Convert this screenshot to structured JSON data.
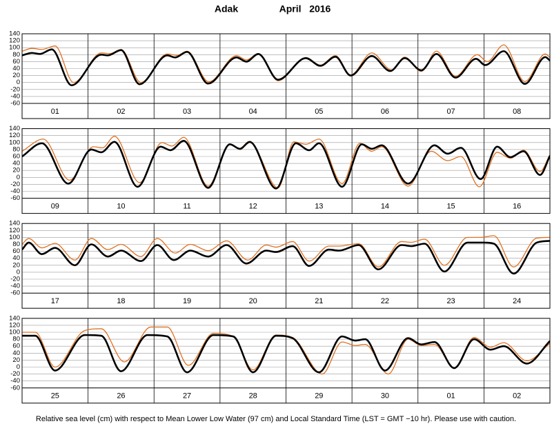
{
  "title": "Adak",
  "subtitle": "April   2016",
  "footnote": "Relative sea level (cm) with respect to Mean Lower Low Water (97 cm) and Local Standard Time (LST = GMT −10 hr). Please use with caution.",
  "chart_data": [
    {
      "type": "line",
      "categories": [
        "01",
        "02",
        "03",
        "04",
        "05",
        "06",
        "07",
        "08"
      ],
      "xlim": [
        0,
        8
      ],
      "xticks": [
        1,
        2,
        3,
        4,
        5,
        6,
        7
      ],
      "ylim": [
        -60,
        140
      ],
      "yticks": [
        -60,
        -40,
        -20,
        0,
        20,
        40,
        60,
        80,
        100,
        120,
        140
      ],
      "grid": true,
      "series": [
        {
          "color": "#e07020",
          "x": [
            0,
            0.15,
            0.3,
            0.5,
            0.78,
            1.2,
            1.33,
            1.5,
            1.8,
            2.2,
            2.35,
            2.5,
            2.83,
            3.25,
            3.4,
            3.58,
            3.88,
            4.3,
            4.52,
            4.75,
            4.98,
            5.3,
            5.6,
            5.8,
            6.05,
            6.28,
            6.57,
            6.9,
            7.05,
            7.3,
            7.62,
            7.93,
            8
          ],
          "values": [
            90,
            98,
            95,
            105,
            0,
            85,
            83,
            95,
            0,
            82,
            78,
            90,
            2,
            77,
            65,
            83,
            5,
            72,
            50,
            77,
            22,
            85,
            36,
            73,
            32,
            90,
            18,
            80,
            60,
            108,
            3,
            82,
            72
          ]
        },
        {
          "color": "#000000",
          "x": [
            0,
            0.15,
            0.27,
            0.45,
            0.75,
            1.2,
            1.3,
            1.5,
            1.78,
            2.2,
            2.32,
            2.5,
            2.82,
            3.25,
            3.4,
            3.58,
            3.88,
            4.3,
            4.52,
            4.75,
            4.98,
            5.3,
            5.58,
            5.8,
            6.05,
            6.28,
            6.57,
            6.88,
            7.02,
            7.3,
            7.62,
            7.93,
            8
          ],
          "values": [
            78,
            85,
            82,
            95,
            -8,
            80,
            78,
            93,
            -5,
            78,
            72,
            88,
            -3,
            72,
            60,
            82,
            8,
            70,
            48,
            74,
            20,
            76,
            33,
            70,
            35,
            82,
            14,
            68,
            50,
            90,
            -4,
            73,
            63
          ]
        }
      ]
    },
    {
      "type": "line",
      "categories": [
        "09",
        "10",
        "11",
        "12",
        "13",
        "14",
        "15",
        "16"
      ],
      "xlim": [
        0,
        8
      ],
      "xticks": [
        1,
        2,
        3,
        4,
        5,
        6,
        7
      ],
      "ylim": [
        -60,
        140
      ],
      "yticks": [
        -60,
        -40,
        -20,
        0,
        20,
        40,
        60,
        80,
        100,
        120,
        140
      ],
      "grid": true,
      "series": [
        {
          "color": "#e07020",
          "x": [
            0,
            0.32,
            0.72,
            1.08,
            1.22,
            1.4,
            1.78,
            2.12,
            2.27,
            2.45,
            2.82,
            3.15,
            3.3,
            3.45,
            3.88,
            4.12,
            4.3,
            4.5,
            4.85,
            5.12,
            5.3,
            5.45,
            5.85,
            6.2,
            6.45,
            6.65,
            6.93,
            7.2,
            7.4,
            7.6,
            7.85,
            8
          ],
          "values": [
            75,
            110,
            -8,
            88,
            85,
            118,
            -15,
            100,
            90,
            115,
            -25,
            96,
            80,
            100,
            -30,
            102,
            95,
            110,
            -18,
            98,
            75,
            88,
            -25,
            75,
            48,
            60,
            -27,
            72,
            55,
            78,
            17,
            65
          ]
        },
        {
          "color": "#000000",
          "x": [
            0,
            0.3,
            0.7,
            1.05,
            1.2,
            1.4,
            1.75,
            2.1,
            2.25,
            2.45,
            2.82,
            3.15,
            3.3,
            3.45,
            3.85,
            4.15,
            4.35,
            4.5,
            4.85,
            5.15,
            5.3,
            5.45,
            5.85,
            6.25,
            6.45,
            6.65,
            6.95,
            7.2,
            7.4,
            7.6,
            7.85,
            8
          ],
          "values": [
            60,
            98,
            -18,
            80,
            72,
            102,
            -27,
            88,
            78,
            105,
            -30,
            95,
            82,
            102,
            -32,
            98,
            78,
            98,
            -27,
            95,
            82,
            92,
            -18,
            92,
            68,
            85,
            -5,
            88,
            58,
            75,
            7,
            62
          ]
        }
      ]
    },
    {
      "type": "line",
      "categories": [
        "17",
        "18",
        "19",
        "20",
        "21",
        "22",
        "23",
        "24"
      ],
      "xlim": [
        0,
        8
      ],
      "xticks": [
        1,
        2,
        3,
        4,
        5,
        6,
        7
      ],
      "ylim": [
        -60,
        140
      ],
      "yticks": [
        -60,
        -40,
        -20,
        0,
        20,
        40,
        60,
        80,
        100,
        120,
        140
      ],
      "grid": true,
      "series": [
        {
          "color": "#e07020",
          "x": [
            0,
            0.1,
            0.3,
            0.5,
            0.8,
            1.05,
            1.3,
            1.5,
            1.8,
            2.05,
            2.32,
            2.55,
            2.82,
            3.1,
            3.42,
            3.7,
            3.85,
            4.1,
            4.35,
            4.65,
            4.8,
            5.1,
            5.4,
            5.75,
            5.9,
            6.1,
            6.4,
            6.75,
            6.95,
            7.15,
            7.45,
            7.8,
            8
          ],
          "values": [
            80,
            97,
            70,
            83,
            35,
            97,
            65,
            80,
            45,
            97,
            55,
            80,
            62,
            90,
            35,
            78,
            72,
            88,
            32,
            75,
            75,
            82,
            15,
            88,
            86,
            95,
            20,
            100,
            100,
            105,
            15,
            98,
            100
          ]
        },
        {
          "color": "#000000",
          "x": [
            0,
            0.1,
            0.3,
            0.5,
            0.8,
            1.05,
            1.3,
            1.5,
            1.8,
            2.05,
            2.3,
            2.55,
            2.82,
            3.1,
            3.4,
            3.7,
            3.85,
            4.1,
            4.35,
            4.65,
            4.8,
            5.1,
            5.4,
            5.75,
            5.9,
            6.1,
            6.4,
            6.75,
            7,
            7.15,
            7.45,
            7.8,
            8
          ],
          "values": [
            65,
            85,
            52,
            70,
            20,
            80,
            45,
            62,
            32,
            78,
            35,
            62,
            45,
            78,
            25,
            62,
            58,
            75,
            18,
            65,
            62,
            78,
            8,
            78,
            75,
            82,
            2,
            85,
            85,
            82,
            -4,
            85,
            90
          ]
        }
      ]
    },
    {
      "type": "line",
      "categories": [
        "25",
        "26",
        "27",
        "28",
        "29",
        "30",
        "01",
        "02"
      ],
      "xlim": [
        0,
        8
      ],
      "xticks": [
        1,
        2,
        3,
        4,
        5,
        6,
        7
      ],
      "ylim": [
        -60,
        140
      ],
      "yticks": [
        -60,
        -40,
        -20,
        0,
        20,
        40,
        60,
        80,
        100,
        120,
        140
      ],
      "grid": true,
      "series": [
        {
          "color": "#e07020",
          "x": [
            0,
            0.2,
            0.5,
            0.95,
            1.2,
            1.55,
            1.95,
            2.2,
            2.52,
            2.9,
            3.2,
            3.5,
            3.85,
            4.1,
            4.55,
            4.85,
            5.05,
            5.2,
            5.55,
            5.85,
            6.05,
            6.25,
            6.55,
            6.85,
            7.1,
            7.3,
            7.65,
            8
          ],
          "values": [
            100,
            100,
            0,
            105,
            110,
            15,
            115,
            115,
            5,
            97,
            88,
            -8,
            92,
            85,
            -20,
            72,
            62,
            65,
            -20,
            80,
            62,
            65,
            -2,
            85,
            57,
            70,
            18,
            68
          ]
        },
        {
          "color": "#000000",
          "x": [
            0,
            0.2,
            0.5,
            0.95,
            1.2,
            1.5,
            1.9,
            2.2,
            2.5,
            2.9,
            3.2,
            3.5,
            3.85,
            4.1,
            4.5,
            4.85,
            5.05,
            5.2,
            5.5,
            5.85,
            6.05,
            6.25,
            6.55,
            6.85,
            7.1,
            7.3,
            7.65,
            8
          ],
          "values": [
            90,
            90,
            -10,
            92,
            90,
            -12,
            92,
            88,
            -15,
            92,
            88,
            -15,
            90,
            83,
            -15,
            88,
            76,
            80,
            -10,
            83,
            65,
            72,
            -3,
            80,
            50,
            60,
            10,
            75
          ]
        }
      ]
    }
  ]
}
